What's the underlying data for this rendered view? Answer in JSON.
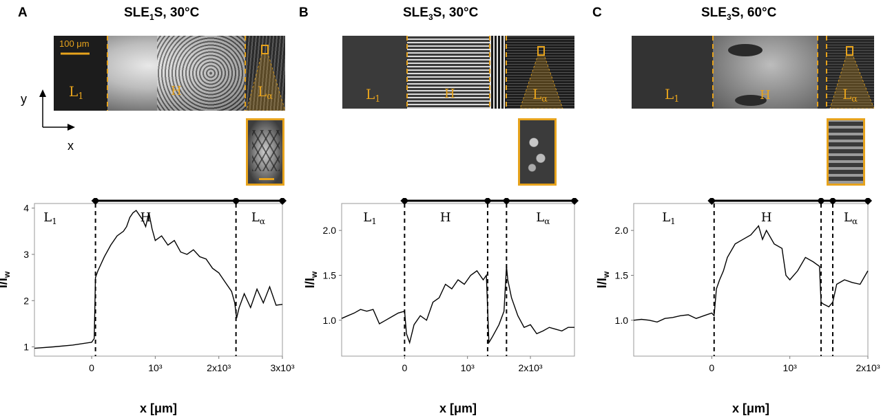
{
  "figure": {
    "panels": [
      {
        "letter": "A",
        "title": "SLE",
        "title_sub": "1",
        "title_tail": "S, 30°C",
        "scale_bar": "100 μm",
        "micro_labels": [
          "L",
          "H",
          "L"
        ],
        "micro_subs": [
          "1",
          "",
          "α"
        ],
        "axes_cue": {
          "y": "y",
          "x": "x"
        }
      },
      {
        "letter": "B",
        "title": "SLE",
        "title_sub": "3",
        "title_tail": "S, 30°C",
        "micro_labels": [
          "L",
          "H",
          "L"
        ],
        "micro_subs": [
          "1",
          "",
          "α"
        ]
      },
      {
        "letter": "C",
        "title": "SLE",
        "title_sub": "3",
        "title_tail": "S, 60°C",
        "micro_labels": [
          "L",
          "H",
          "L"
        ],
        "micro_subs": [
          "1",
          "",
          "α"
        ]
      }
    ],
    "colors": {
      "accent": "#e7a31c",
      "line": "#000000",
      "micro_bg": "#2a2a2a"
    }
  },
  "chart_data": [
    {
      "type": "line",
      "panel": "A",
      "xlabel": "x [μm]",
      "ylabel": "I/I",
      "ylabel_sub": "w",
      "xlim": [
        -900,
        3000
      ],
      "ylim": [
        0.8,
        4.1
      ],
      "xticks": [
        0,
        1000,
        2000,
        3000
      ],
      "xtick_labels": [
        "0",
        "10³",
        "2x10³",
        "3x10³"
      ],
      "yticks": [
        1,
        2,
        3,
        4
      ],
      "ytick_labels": [
        "1",
        "2",
        "3",
        "4"
      ],
      "phase_boundaries": [
        60,
        2270
      ],
      "phase_labels": [
        {
          "text": "L",
          "sub": "1",
          "x": -650
        },
        {
          "text": "H",
          "sub": "",
          "x": 850
        },
        {
          "text": "L",
          "sub": "α",
          "x": 2620
        }
      ],
      "phase_bar_markers": [
        60,
        2270,
        3000
      ],
      "series": [
        {
          "x": [
            -900,
            -600,
            -300,
            0,
            40,
            60,
            100,
            150,
            200,
            300,
            400,
            500,
            550,
            600,
            650,
            700,
            750,
            800,
            850,
            900,
            950,
            1000,
            1100,
            1200,
            1300,
            1400,
            1500,
            1600,
            1700,
            1800,
            1900,
            2000,
            2100,
            2200,
            2250,
            2280,
            2320,
            2400,
            2500,
            2600,
            2700,
            2800,
            2900,
            3000
          ],
          "y": [
            0.97,
            1.0,
            1.04,
            1.1,
            1.18,
            2.5,
            2.65,
            2.8,
            2.95,
            3.2,
            3.4,
            3.5,
            3.6,
            3.8,
            3.9,
            3.95,
            3.85,
            3.75,
            3.6,
            3.9,
            3.55,
            3.3,
            3.4,
            3.2,
            3.3,
            3.05,
            3.0,
            3.1,
            2.95,
            2.9,
            2.7,
            2.6,
            2.4,
            2.2,
            1.95,
            1.62,
            1.85,
            2.15,
            1.85,
            2.25,
            1.95,
            2.3,
            1.9,
            1.92
          ]
        }
      ]
    },
    {
      "type": "line",
      "panel": "B",
      "xlabel": "x [μm]",
      "ylabel": "I/I",
      "ylabel_sub": "w",
      "xlim": [
        -1000,
        2700
      ],
      "ylim": [
        0.6,
        2.3
      ],
      "xticks": [
        0,
        1000,
        2000
      ],
      "xtick_labels": [
        "0",
        "10³",
        "2x10³"
      ],
      "yticks": [
        1.0,
        1.5,
        2.0
      ],
      "ytick_labels": [
        "1.0",
        "1.5",
        "2.0"
      ],
      "phase_boundaries": [
        0,
        1320,
        1620
      ],
      "phase_labels": [
        {
          "text": "L",
          "sub": "1",
          "x": -550
        },
        {
          "text": "H",
          "sub": "",
          "x": 650
        },
        {
          "text": "L",
          "sub": "α",
          "x": 2200
        }
      ],
      "phase_bar_markers": [
        0,
        1320,
        1620,
        2700
      ],
      "series": [
        {
          "x": [
            -1000,
            -900,
            -800,
            -700,
            -600,
            -500,
            -400,
            -300,
            -200,
            -100,
            0,
            30,
            80,
            150,
            250,
            350,
            450,
            550,
            650,
            750,
            850,
            950,
            1050,
            1150,
            1250,
            1300,
            1340,
            1400,
            1500,
            1580,
            1620,
            1640,
            1700,
            1800,
            1900,
            2000,
            2100,
            2200,
            2300,
            2400,
            2500,
            2600,
            2700
          ],
          "y": [
            1.02,
            1.05,
            1.08,
            1.12,
            1.1,
            1.12,
            0.96,
            1.0,
            1.04,
            1.08,
            1.1,
            0.85,
            0.75,
            0.95,
            1.05,
            1.0,
            1.2,
            1.25,
            1.4,
            1.35,
            1.45,
            1.4,
            1.5,
            1.55,
            1.45,
            1.5,
            0.75,
            0.82,
            0.95,
            1.1,
            1.6,
            1.45,
            1.25,
            1.05,
            0.92,
            0.95,
            0.85,
            0.88,
            0.92,
            0.9,
            0.88,
            0.92,
            0.92
          ]
        }
      ]
    },
    {
      "type": "line",
      "panel": "C",
      "xlabel": "x [μm]",
      "ylabel": "I/I",
      "ylabel_sub": "w",
      "xlim": [
        -1000,
        2000
      ],
      "ylim": [
        0.6,
        2.3
      ],
      "xticks": [
        0,
        1000,
        2000
      ],
      "xtick_labels": [
        "0",
        "10³",
        "2x10³"
      ],
      "yticks": [
        1.0,
        1.5,
        2.0
      ],
      "ytick_labels": [
        "1.0",
        "1.5",
        "2.0"
      ],
      "phase_boundaries": [
        30,
        1400,
        1550
      ],
      "phase_labels": [
        {
          "text": "L",
          "sub": "1",
          "x": -550
        },
        {
          "text": "H",
          "sub": "",
          "x": 700
        },
        {
          "text": "L",
          "sub": "α",
          "x": 1780
        }
      ],
      "phase_bar_markers": [
        0,
        1400,
        1550,
        2000
      ],
      "series": [
        {
          "x": [
            -1000,
            -900,
            -800,
            -700,
            -600,
            -500,
            -400,
            -300,
            -200,
            -100,
            0,
            30,
            60,
            100,
            150,
            200,
            300,
            400,
            500,
            600,
            650,
            700,
            800,
            900,
            950,
            1000,
            1100,
            1200,
            1300,
            1380,
            1400,
            1430,
            1500,
            1550,
            1600,
            1700,
            1800,
            1900,
            2000
          ],
          "y": [
            1.0,
            1.01,
            1.0,
            0.98,
            1.02,
            1.03,
            1.05,
            1.06,
            1.02,
            1.05,
            1.08,
            1.05,
            1.35,
            1.45,
            1.55,
            1.7,
            1.85,
            1.9,
            1.95,
            2.05,
            1.9,
            2.0,
            1.85,
            1.8,
            1.5,
            1.45,
            1.55,
            1.7,
            1.65,
            1.6,
            1.2,
            1.18,
            1.15,
            1.2,
            1.4,
            1.45,
            1.42,
            1.4,
            1.55
          ]
        }
      ]
    }
  ]
}
